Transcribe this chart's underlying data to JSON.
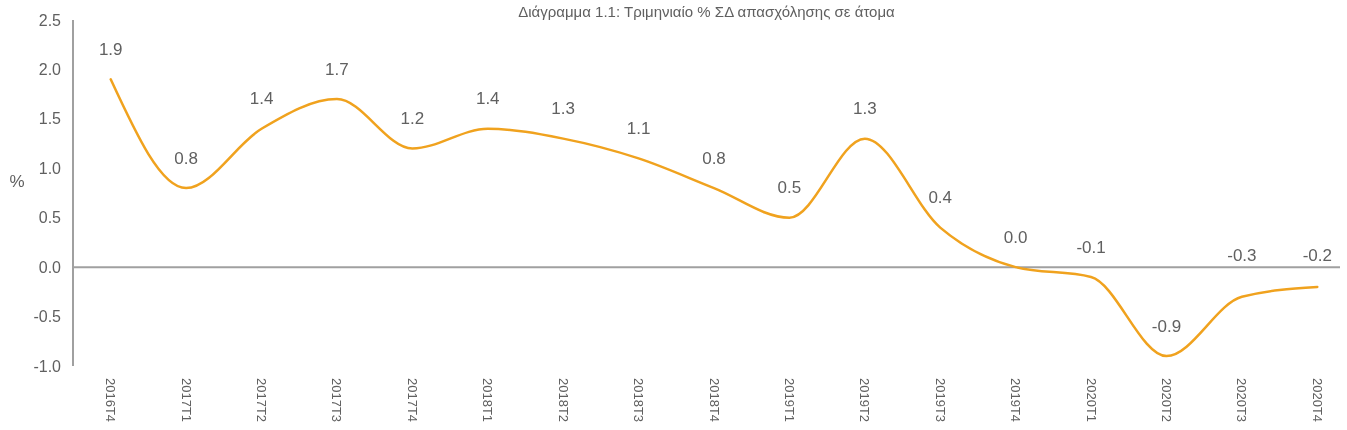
{
  "chart_data": {
    "type": "line",
    "title": "Διάγραμμα 1.1: Τριμηνιαίο % ΣΔ απασχόλησης σε άτομα",
    "ylabel": "%",
    "categories": [
      "2016T4",
      "2017T1",
      "2017T2",
      "2017T3",
      "2017T4",
      "2018T1",
      "2018T2",
      "2018T3",
      "2018T4",
      "2019T1",
      "2019T2",
      "2019T3",
      "2019T4",
      "2020T1",
      "2020T2",
      "2020T3",
      "2020T4"
    ],
    "series": [
      {
        "color": "#f0a21e",
        "values": [
          1.9,
          0.8,
          1.4,
          1.7,
          1.2,
          1.4,
          1.3,
          1.1,
          0.8,
          0.5,
          1.3,
          0.4,
          0.0,
          -0.1,
          -0.9,
          -0.3,
          -0.2
        ],
        "value_labels": [
          "1.9",
          "0.8",
          "1.4",
          "1.7",
          "1.2",
          "1.4",
          "1.3",
          "1.1",
          "0.8",
          "0.5",
          "1.3",
          "0.4",
          "0.0",
          "-0.1",
          "-0.9",
          "-0.3",
          "-0.2"
        ]
      }
    ],
    "ylim": [
      -1,
      2.5
    ],
    "yticks": [
      {
        "value": -1,
        "label": "-1.0"
      },
      -0.5,
      {
        "value": 0,
        "label": "0.0"
      },
      0.5,
      {
        "value": 1,
        "label": "1.0"
      },
      1.5,
      {
        "value": 2,
        "label": "2.0"
      },
      2.5
    ]
  }
}
